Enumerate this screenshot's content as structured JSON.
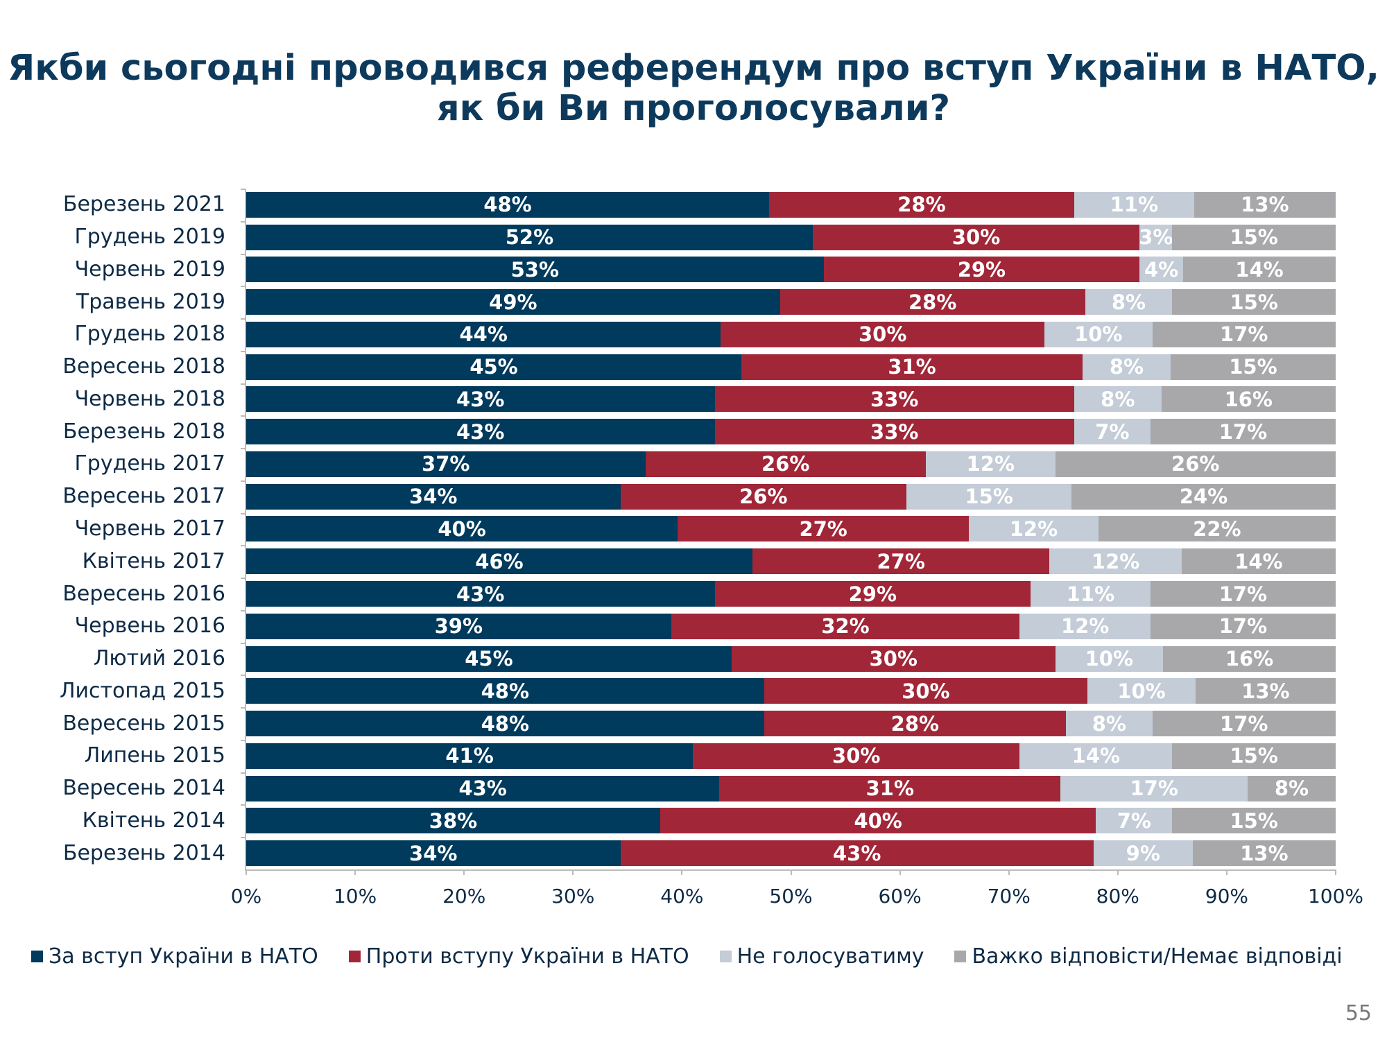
{
  "title": {
    "line1": "Якби сьогодні проводився референдум про вступ України в НАТО,",
    "line2": "як би Ви проголосували?"
  },
  "page_number": "55",
  "chart_data": {
    "type": "bar",
    "orientation": "horizontal",
    "stacked": "percent",
    "title": "Якби сьогодні проводився референдум про вступ України в НАТО, як би Ви проголосували?",
    "categories": [
      "Березень 2021",
      "Грудень 2019",
      "Червень 2019",
      "Травень 2019",
      "Грудень 2018",
      "Вересень 2018",
      "Червень 2018",
      "Березень 2018",
      "Грудень 2017",
      "Вересень 2017",
      "Червень 2017",
      "Квітень 2017",
      "Вересень 2016",
      "Червень 2016",
      "Лютий 2016",
      "Листопад 2015",
      "Вересень 2015",
      "Липень 2015",
      "Вересень 2014",
      "Квітень 2014",
      "Березень 2014"
    ],
    "series": [
      {
        "name": "За вступ України в НАТО",
        "color": "#003a5c",
        "label_color": "#ffffff",
        "values": [
          48,
          52,
          53,
          49,
          44,
          45,
          43,
          43,
          37,
          34,
          40,
          46,
          43,
          39,
          45,
          48,
          48,
          41,
          43,
          38,
          34
        ]
      },
      {
        "name": "Проти вступу України в НАТО",
        "color": "#a12638",
        "label_color": "#ffffff",
        "values": [
          28,
          30,
          29,
          28,
          30,
          31,
          33,
          33,
          26,
          26,
          27,
          27,
          29,
          32,
          30,
          30,
          28,
          30,
          31,
          40,
          43
        ]
      },
      {
        "name": "Не голосуватиму",
        "color": "#c3ccd7",
        "label_color": "#ffffff",
        "values": [
          11,
          3,
          4,
          8,
          10,
          8,
          8,
          7,
          12,
          15,
          12,
          12,
          11,
          12,
          10,
          10,
          8,
          14,
          17,
          7,
          9
        ]
      },
      {
        "name": "Важко відповісти/Немає відповіді",
        "color": "#a8a8ab",
        "label_color": "#ffffff",
        "values": [
          13,
          15,
          14,
          15,
          17,
          15,
          16,
          17,
          26,
          24,
          22,
          14,
          17,
          17,
          16,
          13,
          17,
          15,
          8,
          15,
          13
        ]
      }
    ],
    "x_ticks": [
      "0%",
      "10%",
      "20%",
      "30%",
      "40%",
      "50%",
      "60%",
      "70%",
      "80%",
      "90%",
      "100%"
    ],
    "xlim": [
      0,
      100
    ],
    "grid": false,
    "legend_position": "bottom"
  }
}
